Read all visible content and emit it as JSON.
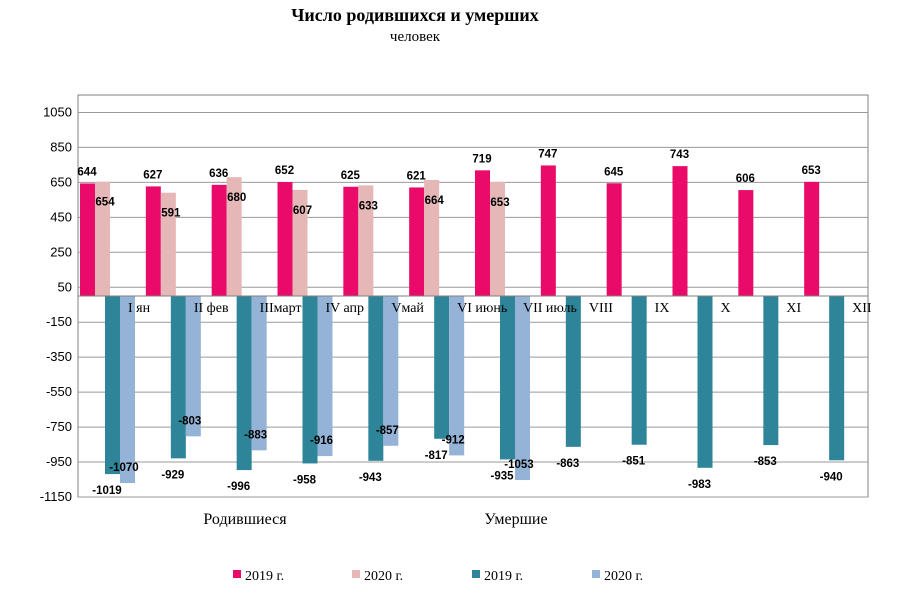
{
  "chart_data": {
    "type": "bar",
    "title": "Число родившихся и умерших",
    "subtitle": "человек",
    "categories": [
      "I  ян",
      "II  фев",
      "IIIмарт",
      "IV апр",
      "Vмай",
      "VI  июнь",
      "VII  июль",
      "VIII",
      "IX",
      "X",
      "XI",
      "XII"
    ],
    "yticks": [
      1050,
      850,
      650,
      450,
      250,
      50,
      -150,
      -350,
      -550,
      -750,
      -950,
      -1150
    ],
    "ylim": [
      -1150,
      1150
    ],
    "grid": true,
    "legend_position": "bottom",
    "group_labels": [
      "Родившиеся",
      "Умершие"
    ],
    "series": [
      {
        "name": "2019 г.",
        "color": "#ea0a6a",
        "values": [
          644,
          627,
          636,
          652,
          625,
          621,
          719,
          747,
          645,
          743,
          606,
          653
        ]
      },
      {
        "name": "2020 г.",
        "color": "#e6b7b7",
        "values": [
          654,
          591,
          680,
          607,
          633,
          664,
          653,
          null,
          null,
          null,
          null,
          null
        ]
      },
      {
        "name": "2019 г.",
        "color": "#2e8599",
        "values": [
          -1019,
          -929,
          -996,
          -958,
          -943,
          -817,
          -935,
          -863,
          -851,
          -983,
          -853,
          -940
        ]
      },
      {
        "name": "2020 г.",
        "color": "#95b3d7",
        "values": [
          -1070,
          -803,
          -883,
          -916,
          -857,
          -912,
          -1053,
          null,
          null,
          null,
          null,
          null
        ]
      }
    ]
  }
}
